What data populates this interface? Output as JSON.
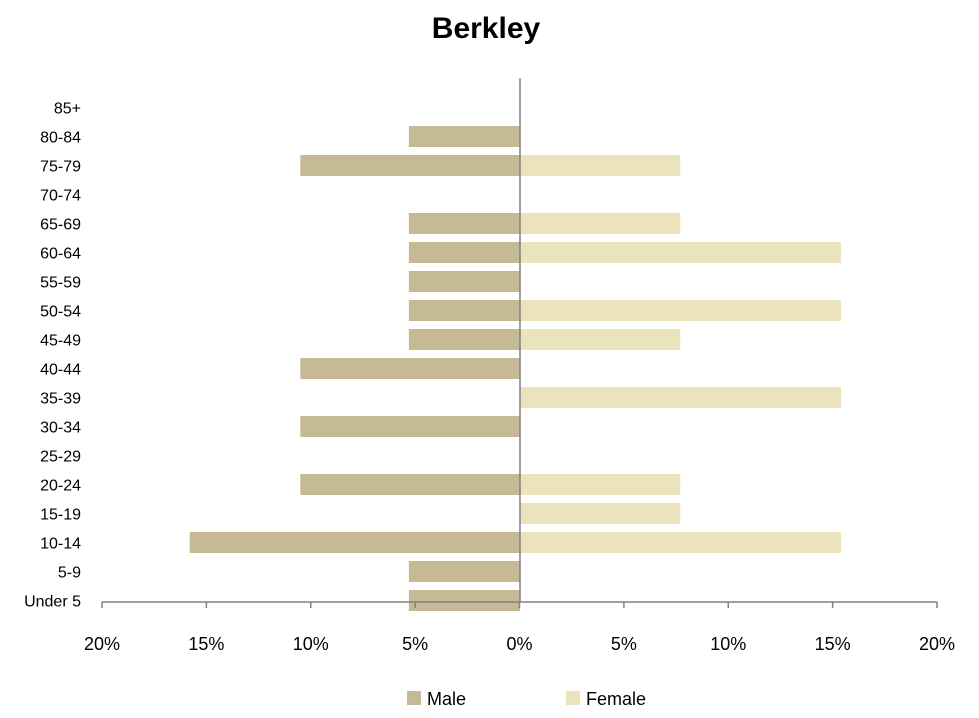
{
  "chart_data": {
    "type": "bar",
    "orientation": "horizontal",
    "title": "Berkley",
    "categories": [
      "85+",
      "80-84",
      "75-79",
      "70-74",
      "65-69",
      "60-64",
      "55-59",
      "50-54",
      "45-49",
      "40-44",
      "35-39",
      "30-34",
      "25-29",
      "20-24",
      "15-19",
      "10-14",
      "5-9",
      "Under 5"
    ],
    "series": [
      {
        "name": "Male",
        "color": "#c6b996",
        "side": "left",
        "values": [
          0,
          5.3,
          10.5,
          0,
          5.3,
          5.3,
          5.3,
          5.3,
          5.3,
          10.5,
          0,
          10.5,
          0,
          10.5,
          0,
          15.8,
          5.3,
          5.3
        ]
      },
      {
        "name": "Female",
        "color": "#ebe3bc",
        "side": "right",
        "values": [
          0,
          0,
          7.7,
          0,
          7.7,
          15.4,
          0,
          15.4,
          7.7,
          0,
          15.4,
          0,
          0,
          7.7,
          7.7,
          15.4,
          0,
          0
        ]
      }
    ],
    "xlim": [
      -20,
      20
    ],
    "x_ticks": [
      -20,
      -15,
      -10,
      -5,
      0,
      5,
      10,
      15,
      20
    ],
    "x_tick_labels": [
      "20%",
      "15%",
      "10%",
      "5%",
      "0%",
      "5%",
      "10%",
      "15%",
      "20%"
    ],
    "unit": "%",
    "grid": false,
    "legend_position": "bottom",
    "xlabel": "",
    "ylabel": ""
  }
}
